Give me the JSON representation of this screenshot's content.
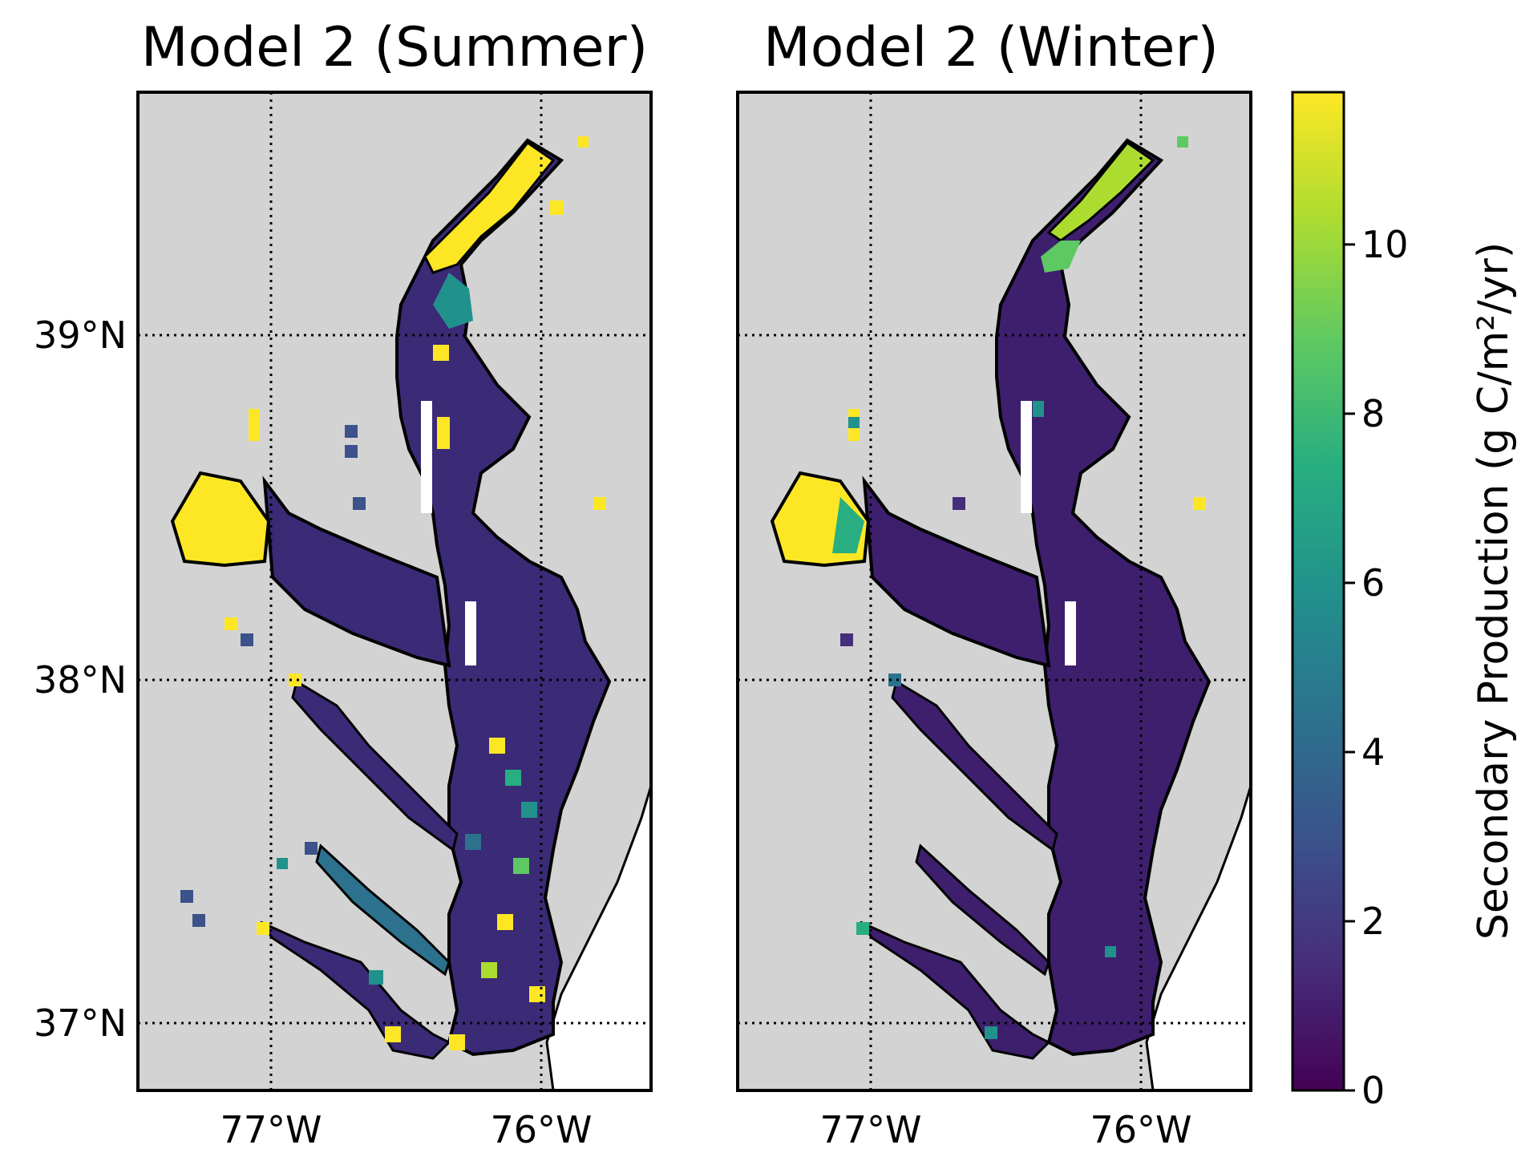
{
  "panels": [
    {
      "title": "Model 2 (Summer)",
      "season": "summer"
    },
    {
      "title": "Model 2 (Winter)",
      "season": "winter"
    }
  ],
  "lon_ticks": [
    {
      "value": -77,
      "label": "77°W"
    },
    {
      "value": -76,
      "label": "76°W"
    }
  ],
  "lat_ticks": [
    {
      "value": 39,
      "label": "39°N"
    },
    {
      "value": 38,
      "label": "38°N"
    },
    {
      "value": 37,
      "label": "37°N"
    }
  ],
  "extent": {
    "lon": [
      -77.5,
      -75.6
    ],
    "lat": [
      36.8,
      39.7
    ]
  },
  "gridlines": "dotted",
  "colors": {
    "land": "#d3d3d3",
    "ocean": "#ffffff",
    "coast": "#000000"
  },
  "colorbar": {
    "label": "Secondary Production (g C/m²/yr)",
    "colormap": "viridis",
    "range": [
      0,
      11.8
    ],
    "ticks": [
      {
        "value": 0,
        "label": "0"
      },
      {
        "value": 2,
        "label": "2"
      },
      {
        "value": 4,
        "label": "4"
      },
      {
        "value": 6,
        "label": "6"
      },
      {
        "value": 8,
        "label": "8"
      },
      {
        "value": 10,
        "label": "10"
      }
    ]
  }
}
